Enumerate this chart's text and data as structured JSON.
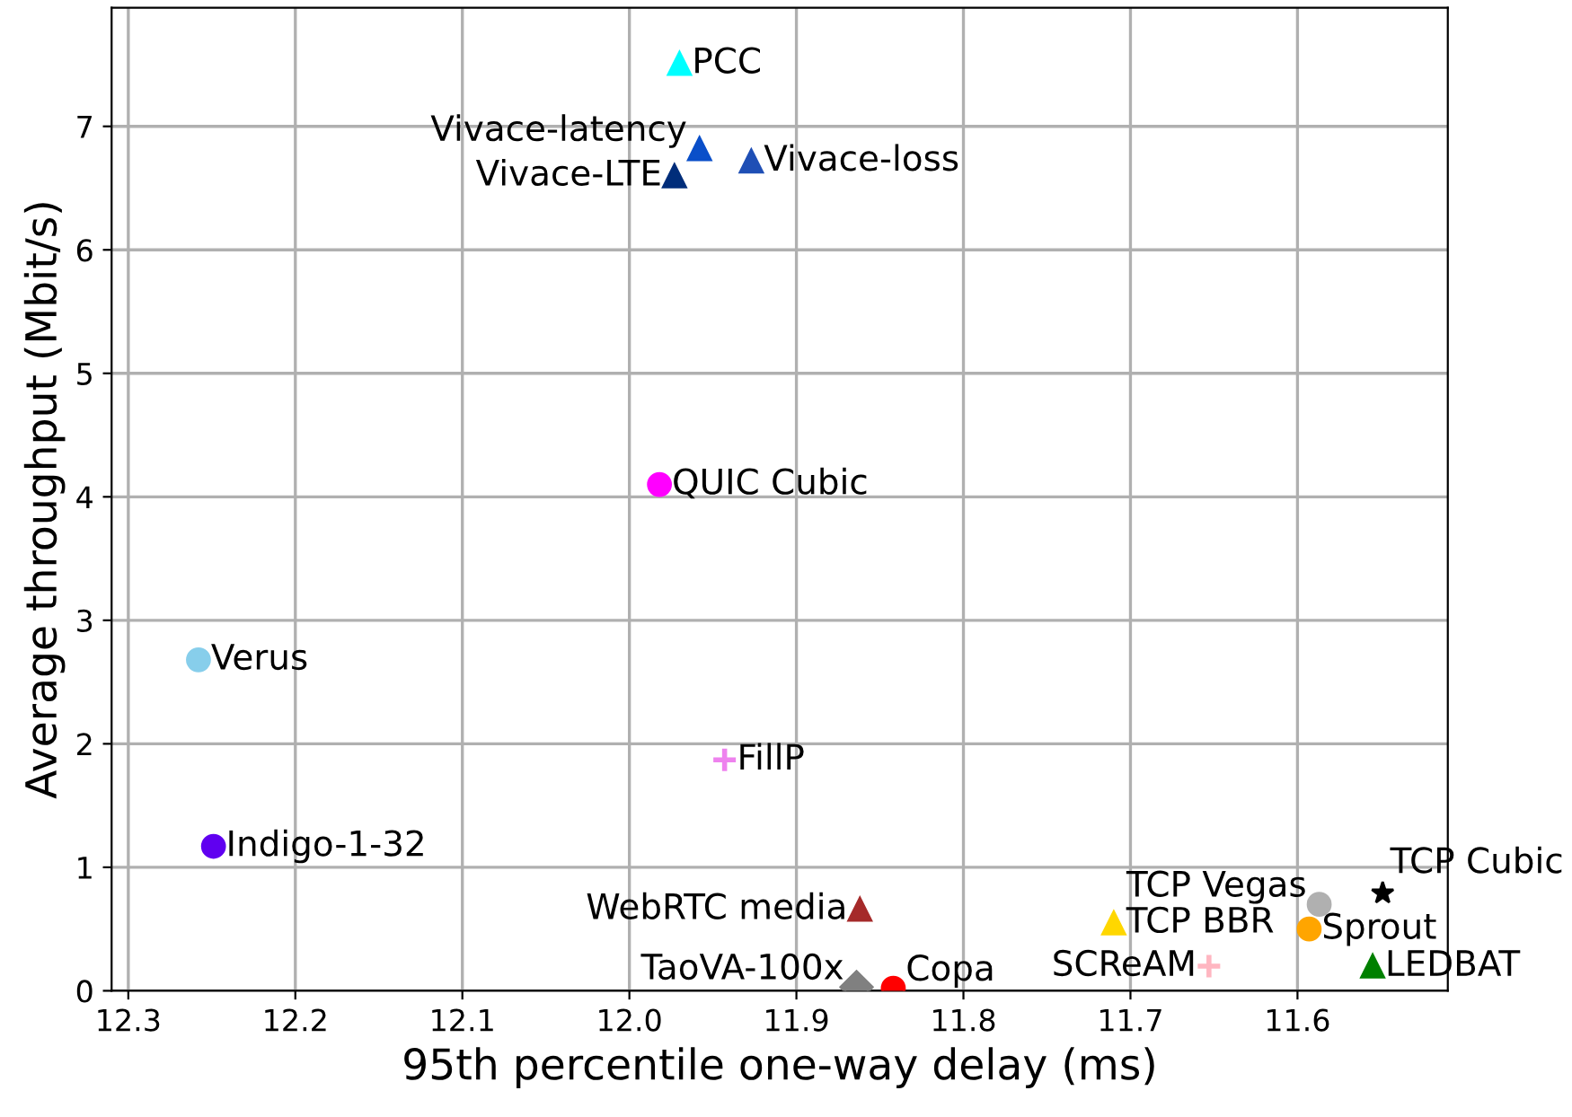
{
  "chart_data": {
    "type": "scatter",
    "xlabel": "95th percentile one-way delay (ms)",
    "ylabel": "Average throughput (Mbit/s)",
    "xlim": [
      12.31,
      11.51
    ],
    "xticks": [
      12.3,
      12.2,
      12.1,
      {
        "value": 12.0,
        "label": "12.0"
      },
      11.9,
      11.8,
      11.7,
      11.6
    ],
    "ylim": [
      0,
      7.96
    ],
    "yticks": [
      0,
      1,
      2,
      3,
      4,
      5,
      6,
      7
    ],
    "grid": true,
    "series": [
      {
        "name": "PCC",
        "color": "#00ffff",
        "marker": "triangle",
        "x": [
          11.97
        ],
        "values": [
          7.51
        ]
      },
      {
        "name": "Vivace-latency",
        "color": "#0a4fc9",
        "marker": "triangle",
        "x": [
          11.958
        ],
        "values": [
          6.82
        ]
      },
      {
        "name": "Vivace-loss",
        "color": "#1f4fb5",
        "marker": "triangle",
        "x": [
          11.927
        ],
        "values": [
          6.72
        ]
      },
      {
        "name": "Vivace-LTE",
        "color": "#002d7a",
        "marker": "triangle",
        "x": [
          11.973
        ],
        "values": [
          6.6
        ]
      },
      {
        "name": "QUIC Cubic",
        "color": "#ff00ff",
        "marker": "circle",
        "x": [
          11.982
        ],
        "values": [
          4.1
        ]
      },
      {
        "name": "Verus",
        "color": "#87ceeb",
        "marker": "circle",
        "x": [
          12.258
        ],
        "values": [
          2.68
        ]
      },
      {
        "name": "Indigo-1-32",
        "color": "#6000f0",
        "marker": "circle",
        "x": [
          12.249
        ],
        "values": [
          1.17
        ]
      },
      {
        "name": "FillP",
        "color": "#ee82ee",
        "marker": "cross",
        "x": [
          11.943
        ],
        "values": [
          1.87
        ]
      },
      {
        "name": "WebRTC media",
        "color": "#a52a2a",
        "marker": "triangle",
        "x": [
          11.862
        ],
        "values": [
          0.66
        ]
      },
      {
        "name": "TCP BBR",
        "color": "#ffd700",
        "marker": "triangle",
        "x": [
          11.71
        ],
        "values": [
          0.55
        ]
      },
      {
        "name": "TCP Vegas",
        "color": "#b0b0b0",
        "marker": "circle",
        "x": [
          11.587
        ],
        "values": [
          0.7
        ]
      },
      {
        "name": "TCP Cubic",
        "color": "#000000",
        "marker": "star",
        "x": [
          11.549
        ],
        "values": [
          0.79
        ]
      },
      {
        "name": "Sprout",
        "color": "#ffa500",
        "marker": "circle",
        "x": [
          11.593
        ],
        "values": [
          0.5
        ]
      },
      {
        "name": "SCReAM",
        "color": "#ffb6c1",
        "marker": "cross",
        "x": [
          11.653
        ],
        "values": [
          0.2
        ]
      },
      {
        "name": "LEDBAT",
        "color": "#008000",
        "marker": "triangle",
        "x": [
          11.555
        ],
        "values": [
          0.2
        ]
      },
      {
        "name": "Copa",
        "color": "#ff0000",
        "marker": "circle",
        "x": [
          11.842
        ],
        "values": [
          0.02
        ]
      },
      {
        "name": "TaoVA-100x",
        "color": "#808080",
        "marker": "diamond",
        "x": [
          11.864
        ],
        "values": [
          0.03
        ]
      }
    ]
  }
}
